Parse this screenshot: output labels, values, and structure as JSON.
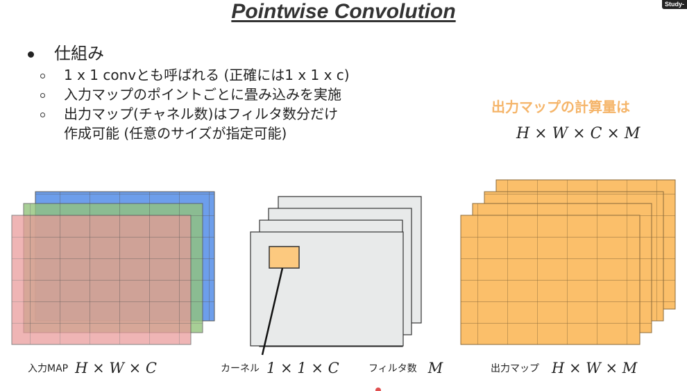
{
  "title": "Pointwise Convolution",
  "badge": "Study-",
  "bullets": {
    "main": "仕組み",
    "sub": [
      {
        "line1": "1 x 1 convとも呼ばれる (正確には1 x 1 x c)"
      },
      {
        "line1": "入力マップのポイントごとに畳み込みを実施"
      },
      {
        "line1": "出力マップ(チャネル数)はフィルタ数分だけ",
        "line2": "作成可能 (任意のサイズが指定可能)"
      }
    ]
  },
  "calc": {
    "label": "出力マップの計算量は",
    "formula": "H × W × C × M"
  },
  "captions": {
    "input_label": "入力MAP",
    "input_formula": "H × W × C",
    "kernel_label": "カーネル",
    "kernel_formula": "1 × 1 × C",
    "filter_label": "フィルタ数",
    "filter_formula": "M",
    "output_label": "出力マップ",
    "output_formula": "H × W × M"
  },
  "colors": {
    "input_blue": "#6d9eeb",
    "input_green": "#93c47d",
    "input_red": "#ea9999",
    "kernel_sheet": "#e8eaea",
    "kernel_box": "#fcc97f",
    "output": "#fbbf6a",
    "calc_label": "#f5b56a"
  }
}
